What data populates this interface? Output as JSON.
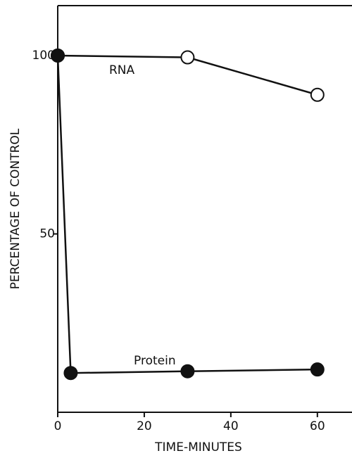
{
  "chart_data": {
    "type": "line",
    "xlabel": "TIME-MINUTES",
    "ylabel": "PERCENTAGE OF CONTROL",
    "xlim": [
      0,
      68
    ],
    "ylim": [
      0,
      114
    ],
    "xticks": [
      0,
      20,
      40,
      60
    ],
    "yticks": [
      50,
      100
    ],
    "series": [
      {
        "name": "RNA",
        "color": "#111111",
        "fill": "#ffffff",
        "x": [
          0,
          30,
          60
        ],
        "values": [
          100,
          99.5,
          89
        ]
      },
      {
        "name": "Protein",
        "color": "#111111",
        "fill": "#111111",
        "x": [
          0,
          3,
          30,
          60
        ],
        "values": [
          100,
          11,
          11.5,
          12
        ]
      }
    ]
  }
}
